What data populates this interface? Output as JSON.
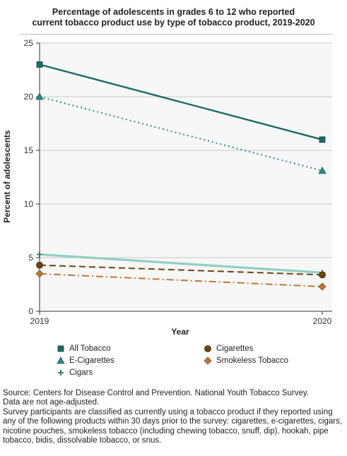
{
  "chart_data": {
    "type": "line",
    "title_lines": [
      "Percentage of adolescents in grades 6 to 12 who reported",
      "current tobacco product use by type of tobacco product, 2019-2020"
    ],
    "xlabel": "Year",
    "ylabel": "Percent of adolescents",
    "x": [
      "2019",
      "2020"
    ],
    "ylim": [
      0,
      25
    ],
    "yticks": [
      "0",
      "5",
      "10",
      "15",
      "20",
      "25"
    ],
    "grid": true,
    "legend_position": "bottom",
    "series": [
      {
        "name": "All Tobacco",
        "values": [
          23.0,
          16.0
        ],
        "color": "#1b6b63",
        "dash": "solid",
        "marker": "square"
      },
      {
        "name": "E-Cigarettes",
        "values": [
          20.0,
          13.1
        ],
        "color": "#2e8b85",
        "dash": "dotted",
        "marker": "triangle"
      },
      {
        "name": "Cigars",
        "values": [
          5.3,
          3.6
        ],
        "color": "#8fd0c4",
        "dash": "solid",
        "marker": "plus"
      },
      {
        "name": "Cigarettes",
        "values": [
          4.3,
          3.4
        ],
        "color": "#6b4413",
        "dash": "dashed",
        "marker": "circle"
      },
      {
        "name": "Smokeless Tobacco",
        "values": [
          3.5,
          2.3
        ],
        "color": "#b97a38",
        "dash": "dashdot",
        "marker": "diamond"
      }
    ]
  },
  "source": {
    "line1": "Source: Centers for Disease Control and Prevention. National Youth Tobacco Survey.",
    "line2": "Data are not age-adjusted.",
    "line3": "Survey participants are classified as currently using a tobacco product if they reported using any of the following products within 30 days prior to the survey: cigarettes, e-cigarettes, cigars, nicotine pouches, smokeless tobacco (including chewing tobacco, snuff, dip), hookah, pipe tobacco, bidis, dissolvable tobacco, or snus."
  }
}
